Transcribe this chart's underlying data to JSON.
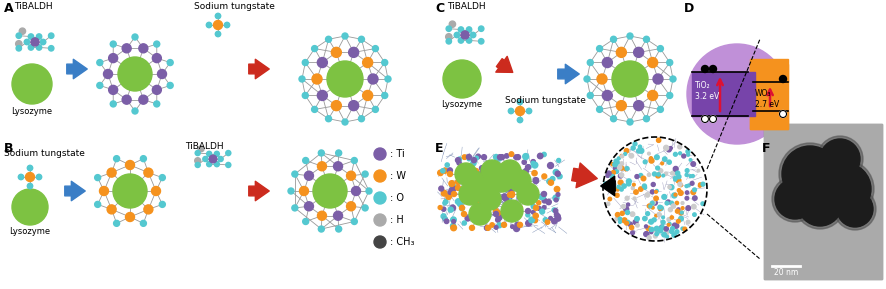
{
  "background": "#ffffff",
  "colors": {
    "Ti": "#7B5EA7",
    "W": "#F5921E",
    "O": "#54C8D0",
    "H": "#AAAAAA",
    "CH3": "#444444",
    "lysozyme": "#7DC242",
    "blue_arrow": "#3A7EC6",
    "red_arrow": "#CC2B1E",
    "black": "#111111",
    "tio2_purple": "#9060BB",
    "tio2_inner": "#7744AA",
    "wo3_orange": "#F5921E",
    "bond": "#999999"
  },
  "labels": {
    "A": "A",
    "B": "B",
    "C": "C",
    "D": "D",
    "E": "E",
    "F": "F",
    "TiBALDH": "TiBALDH",
    "sodium_tungstate": "Sodium tungstate",
    "lysozyme": "Lysozyme",
    "Ti_label": ": Ti",
    "W_label": ": W",
    "O_label": ": O",
    "H_label": ": H",
    "CH3_label": ": CH₃",
    "TiO2": "TiO₂\n3.2 eV",
    "WO3": "WO₃\n2.7 eV",
    "scale": "20 nm"
  }
}
